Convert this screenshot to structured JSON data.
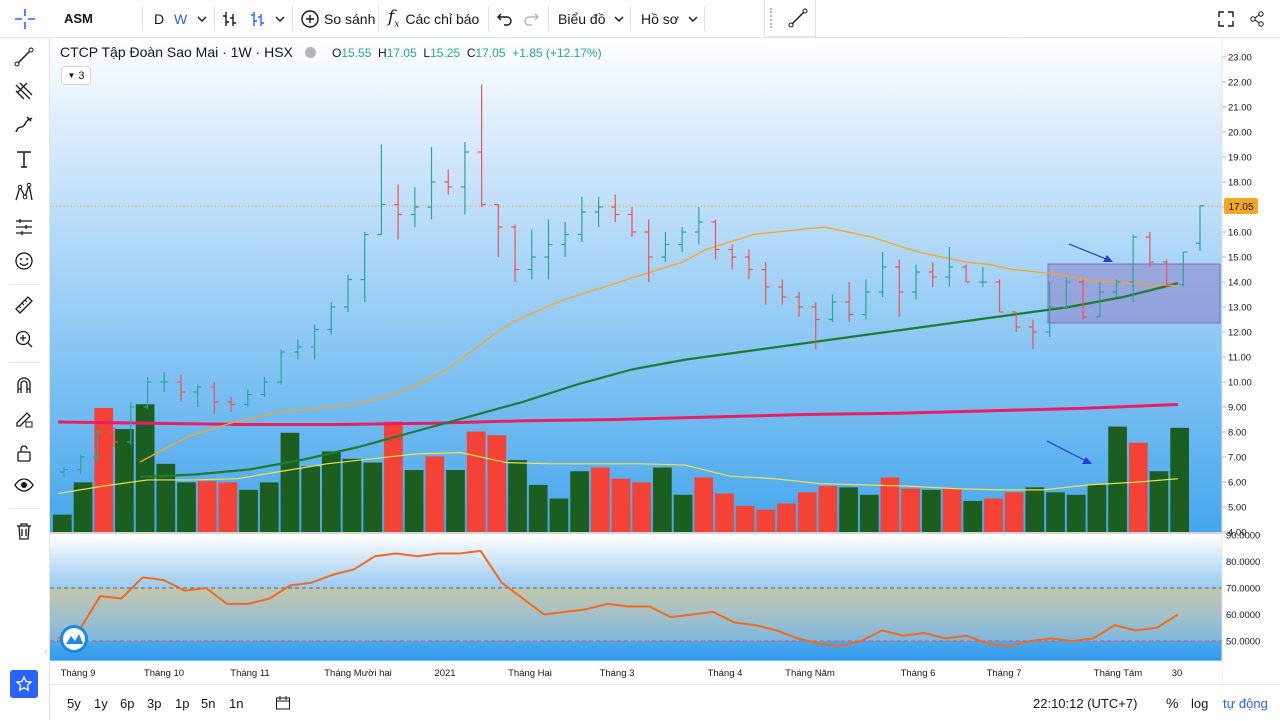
{
  "toolbar": {
    "symbol": "ASM",
    "interval_d": "D",
    "interval_w": "W",
    "compare": "So sánh",
    "indicators": "Các chỉ báo",
    "layout": "Biểu đồ",
    "profile": "Hồ sơ"
  },
  "legend": {
    "title": "CTCP Tập Đoàn Sao Mai · 1W · HSX",
    "o": "O",
    "o_val": "15.55",
    "h": "H",
    "h_val": "17.05",
    "l": "L",
    "l_val": "15.25",
    "c": "C",
    "c_val": "17.05",
    "change": "+1.85 (+12.17%)",
    "collapsed_count": "3"
  },
  "colors": {
    "up": "#26a69a",
    "down": "#ef5350",
    "vol_up": "#1b5e20",
    "vol_down": "#f44336",
    "ma_orange": "#f5a623",
    "ma_green": "#1e7b34",
    "ma_magenta": "#e91e63",
    "rsi": "#f26b1d",
    "price_line": "#f5a623"
  },
  "price_axis": [
    "23.00",
    "22.00",
    "21.00",
    "20.00",
    "19.00",
    "18.00",
    "17.00",
    "16.00",
    "15.00",
    "14.00",
    "13.00",
    "12.00",
    "11.00",
    "10.00",
    "9.00",
    "8.00",
    "7.00",
    "6.00",
    "5.00",
    "4.00"
  ],
  "last_price_label": "17.05",
  "rsi_axis": [
    "90.0000",
    "80.0000",
    "70.0000",
    "60.0000",
    "50.0000"
  ],
  "time_axis": [
    "Tháng 9",
    "Tháng 10",
    "Tháng 11",
    "Tháng Mười hai",
    "2021",
    "Tháng Hai",
    "Tháng 3",
    "Tháng 4",
    "Tháng Năm",
    "Tháng 6",
    "Tháng 7",
    "Tháng Tám",
    "30"
  ],
  "bottom": {
    "ranges": [
      "5y",
      "1y",
      "6p",
      "3p",
      "1p",
      "5n",
      "1n"
    ],
    "clock": "22:10:12 (UTC+7)",
    "pct": "%",
    "log": "log",
    "auto": "tự động"
  },
  "chart_data": {
    "type": "ohlc",
    "title": "CTCP Tập Đoàn Sao Mai · 1W · HSX",
    "ylim": [
      4,
      23.5
    ],
    "ohlc": [
      [
        6.4,
        6.6,
        6.2,
        6.5
      ],
      [
        6.5,
        7.1,
        6.3,
        7.0
      ],
      [
        7.0,
        8.1,
        6.8,
        8.0
      ],
      [
        8.0,
        8.2,
        7.4,
        7.6
      ],
      [
        7.6,
        9.2,
        7.5,
        9.0
      ],
      [
        9.0,
        10.2,
        8.9,
        10.0
      ],
      [
        10.0,
        10.4,
        9.6,
        10.0
      ],
      [
        10.0,
        10.3,
        9.2,
        9.6
      ],
      [
        9.6,
        9.9,
        9.0,
        9.8
      ],
      [
        9.8,
        10.0,
        8.7,
        9.2
      ],
      [
        9.2,
        9.4,
        8.8,
        9.1
      ],
      [
        9.1,
        9.7,
        9.0,
        9.5
      ],
      [
        9.5,
        10.2,
        9.4,
        10.0
      ],
      [
        10.0,
        11.3,
        9.9,
        11.2
      ],
      [
        11.2,
        11.7,
        10.9,
        11.4
      ],
      [
        11.4,
        12.3,
        10.9,
        12.1
      ],
      [
        12.1,
        13.2,
        11.9,
        13.0
      ],
      [
        13.0,
        14.3,
        12.8,
        14.1
      ],
      [
        14.1,
        16.0,
        13.2,
        15.9
      ],
      [
        15.9,
        19.5,
        15.9,
        17.1
      ],
      [
        17.1,
        17.9,
        15.7,
        16.7
      ],
      [
        16.7,
        17.8,
        16.2,
        17.0
      ],
      [
        17.0,
        19.4,
        16.5,
        18.0
      ],
      [
        18.0,
        18.5,
        17.5,
        17.8
      ],
      [
        17.8,
        19.6,
        16.7,
        19.2
      ],
      [
        19.2,
        21.9,
        17.0,
        17.1
      ],
      [
        17.1,
        17.1,
        15.0,
        16.2
      ],
      [
        16.2,
        16.3,
        14.0,
        14.5
      ],
      [
        14.5,
        16.1,
        14.1,
        15.0
      ],
      [
        15.0,
        16.5,
        14.1,
        15.5
      ],
      [
        15.5,
        16.4,
        15.0,
        15.9
      ],
      [
        15.9,
        17.4,
        15.6,
        16.8
      ],
      [
        16.8,
        17.4,
        16.2,
        17.0
      ],
      [
        17.0,
        17.5,
        16.4,
        16.7
      ],
      [
        16.7,
        17.0,
        15.8,
        16.0
      ],
      [
        16.0,
        16.5,
        14.0,
        15.0
      ],
      [
        15.0,
        16.0,
        14.8,
        15.5
      ],
      [
        15.5,
        16.2,
        15.2,
        16.0
      ],
      [
        16.0,
        17.0,
        15.5,
        16.4
      ],
      [
        16.4,
        16.5,
        14.9,
        15.3
      ],
      [
        15.3,
        15.5,
        14.5,
        15.0
      ],
      [
        15.0,
        15.3,
        14.1,
        14.5
      ],
      [
        14.5,
        14.8,
        13.1,
        13.8
      ],
      [
        13.8,
        14.1,
        13.1,
        13.4
      ],
      [
        13.4,
        13.6,
        12.6,
        13.0
      ],
      [
        13.0,
        13.2,
        11.3,
        12.5
      ],
      [
        12.5,
        13.5,
        12.4,
        13.2
      ],
      [
        13.2,
        14.0,
        12.4,
        12.7
      ],
      [
        12.7,
        14.1,
        12.5,
        13.6
      ],
      [
        13.6,
        15.2,
        13.4,
        14.6
      ],
      [
        14.6,
        14.9,
        12.6,
        13.6
      ],
      [
        13.6,
        14.7,
        13.3,
        14.4
      ],
      [
        14.4,
        14.8,
        13.8,
        14.2
      ],
      [
        14.2,
        15.4,
        13.8,
        14.6
      ],
      [
        14.6,
        14.7,
        14.0,
        14.0
      ],
      [
        14.0,
        14.6,
        13.8,
        14.0
      ],
      [
        14.0,
        14.1,
        12.8,
        12.8
      ],
      [
        12.8,
        12.8,
        12.0,
        12.2
      ],
      [
        12.2,
        12.5,
        11.3,
        12.0
      ],
      [
        12.0,
        14.0,
        11.8,
        13.0
      ],
      [
        13.0,
        14.2,
        12.9,
        14.0
      ],
      [
        14.0,
        14.1,
        12.5,
        12.6
      ],
      [
        12.6,
        14.0,
        12.6,
        13.6
      ],
      [
        13.6,
        14.1,
        13.4,
        14.0
      ],
      [
        14.0,
        15.9,
        13.2,
        15.8
      ],
      [
        15.8,
        16.0,
        14.6,
        14.8
      ],
      [
        14.8,
        14.9,
        13.8,
        13.9
      ],
      [
        13.9,
        15.2,
        13.8,
        15.2
      ],
      [
        15.55,
        17.05,
        15.25,
        17.05
      ]
    ],
    "volume_relative": [
      0.14,
      0.4,
      1.0,
      0.83,
      1.03,
      0.55,
      0.4,
      0.41,
      0.4,
      0.34,
      0.4,
      0.8,
      0.53,
      0.65,
      0.59,
      0.56,
      0.89,
      0.5,
      0.61,
      0.5,
      0.81,
      0.78,
      0.58,
      0.38,
      0.27,
      0.49,
      0.52,
      0.43,
      0.4,
      0.52,
      0.3,
      0.44,
      0.31,
      0.21,
      0.18,
      0.23,
      0.32,
      0.37,
      0.36,
      0.3,
      0.44,
      0.35,
      0.34,
      0.35,
      0.25,
      0.27,
      0.32,
      0.36,
      0.32,
      0.3,
      0.38,
      0.85,
      0.72,
      0.49,
      0.84
    ],
    "ma_short": [
      6.8,
      7.3,
      7.8,
      8.1,
      8.4,
      8.6,
      8.8,
      8.9,
      9.0,
      9.1,
      9.3,
      9.6,
      10.0,
      10.5,
      11.2,
      11.9,
      12.5,
      12.9,
      13.3,
      13.6,
      13.9,
      14.2,
      14.5,
      14.8,
      15.3,
      15.6,
      15.9,
      16.0,
      16.1,
      16.2,
      16.0,
      15.8,
      15.5,
      15.2,
      15.0,
      14.8,
      14.7,
      14.5,
      14.4,
      14.3,
      14.1,
      14.0,
      13.95,
      13.9,
      13.85
    ],
    "ma_mid": [
      6.2,
      6.3,
      6.5,
      6.9,
      7.4,
      8.0,
      8.6,
      9.2,
      9.9,
      10.5,
      10.9,
      11.2,
      11.5,
      11.8,
      12.1,
      12.4,
      12.7,
      13.0,
      13.4,
      13.95
    ],
    "ma_long": [
      8.4,
      8.35,
      8.3,
      8.3,
      8.35,
      8.45,
      8.5,
      8.6,
      8.7,
      8.75,
      8.85,
      8.95,
      9.1
    ],
    "vol_ma_relative": [
      0.31,
      0.37,
      0.42,
      0.42,
      0.43,
      0.49,
      0.55,
      0.59,
      0.63,
      0.64,
      0.56,
      0.55,
      0.55,
      0.55,
      0.54,
      0.45,
      0.43,
      0.39,
      0.38,
      0.37,
      0.35,
      0.34,
      0.34,
      0.38,
      0.4,
      0.43
    ],
    "rsi": [
      51,
      54,
      67,
      66,
      74,
      73,
      69,
      70,
      64,
      64,
      66,
      71,
      72,
      75,
      77,
      82,
      83,
      82,
      83,
      83,
      84,
      72,
      66,
      60,
      61,
      62,
      64,
      63,
      63,
      59,
      60,
      61,
      57,
      56,
      54,
      51,
      49,
      48,
      50,
      54,
      52,
      53,
      51,
      52,
      49,
      48,
      50,
      51,
      50,
      51,
      56,
      54,
      55,
      60
    ],
    "rsi_levels": [
      70,
      50
    ]
  }
}
